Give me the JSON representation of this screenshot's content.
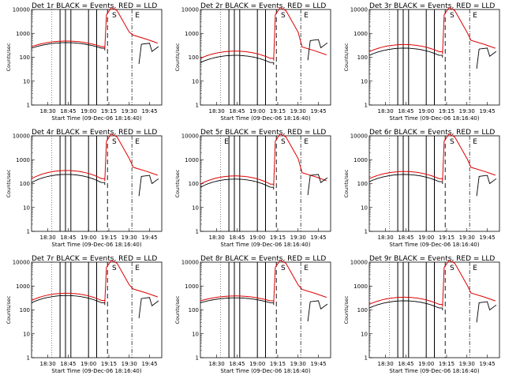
{
  "chart_data": {
    "type": "line",
    "x_tick_labels": [
      "18:30",
      "18:45",
      "19:00",
      "19:15",
      "19:30",
      "19:45"
    ],
    "y_tick_labels": [
      "1",
      "10",
      "100",
      "1000",
      "10000"
    ],
    "ylim": [
      1,
      10000
    ],
    "yscale": "log",
    "ylabel": "Counts/sec",
    "xlabel": "Start Time (09-Dec-06 18:16:40)",
    "colors": {
      "events": "#000000",
      "lld": "#dd0000"
    },
    "markers": {
      "solid_times": [
        18.65,
        18.717,
        18.783,
        19.0,
        19.1
      ],
      "dashed_time": 19.233,
      "dashdot_time": 19.533,
      "dotted_time": 18.55
    },
    "marker_letters": {
      "S": 19.317,
      "E": 19.6
    },
    "panels": [
      {
        "title": "Det 1r BLACK = Events, RED = LLD",
        "events_level": 240,
        "lld_level": 280,
        "bump": 1.7,
        "late_black": 350,
        "letters": [
          "S",
          "E"
        ]
      },
      {
        "title": "Det 2r BLACK = Events, RED = LLD",
        "events_level": 60,
        "lld_level": 90,
        "bump": 2.0,
        "late_black": 500,
        "letters": [
          "S",
          "E"
        ]
      },
      {
        "title": "Det 3r BLACK = Events, RED = LLD",
        "events_level": 120,
        "lld_level": 170,
        "bump": 2.0,
        "late_black": 220,
        "letters": [
          "S",
          "E"
        ]
      },
      {
        "title": "Det 4r BLACK = Events, RED = LLD",
        "events_level": 110,
        "lld_level": 160,
        "bump": 2.2,
        "late_black": 200,
        "letters": [
          "S",
          "E"
        ]
      },
      {
        "title": "Det 5r BLACK = Events, RED = LLD",
        "events_level": 70,
        "lld_level": 95,
        "bump": 2.2,
        "late_black": 220,
        "letters": [
          "E",
          "S",
          "E"
        ]
      },
      {
        "title": "Det 6r BLACK = Events, RED = LLD",
        "events_level": 120,
        "lld_level": 160,
        "bump": 2.0,
        "late_black": 200,
        "letters": [
          "S",
          "E"
        ]
      },
      {
        "title": "Det 7r BLACK = Events, RED = LLD",
        "events_level": 200,
        "lld_level": 250,
        "bump": 2.0,
        "late_black": 300,
        "letters": [
          "S",
          "E"
        ]
      },
      {
        "title": "Det 8r BLACK = Events, RED = LLD",
        "events_level": 200,
        "lld_level": 240,
        "bump": 1.6,
        "late_black": 220,
        "letters": [
          "S",
          "E"
        ]
      },
      {
        "title": "Det 9r BLACK = Events, RED = LLD",
        "events_level": 120,
        "lld_level": 170,
        "bump": 2.0,
        "late_black": 200,
        "letters": [
          "S",
          "E"
        ]
      }
    ]
  }
}
